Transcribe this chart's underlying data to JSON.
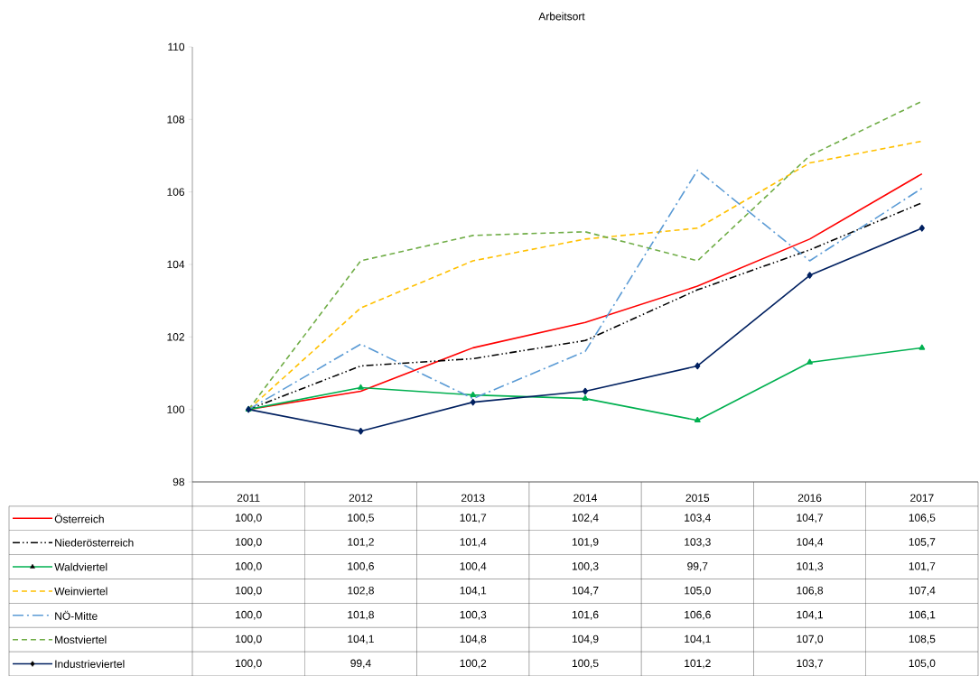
{
  "chart_data": {
    "type": "line",
    "title": "Arbeitsort",
    "categories": [
      "2011",
      "2012",
      "2013",
      "2014",
      "2015",
      "2016",
      "2017"
    ],
    "ylim": [
      98,
      110
    ],
    "yticks": [
      98,
      100,
      102,
      104,
      106,
      108,
      110
    ],
    "legend": "bottom",
    "series": [
      {
        "name": "Österreich",
        "color": "#ff0000",
        "line_style": "solid",
        "marker": "none",
        "values": [
          100.0,
          100.5,
          101.7,
          102.4,
          103.4,
          104.7,
          106.5
        ],
        "value_labels": [
          "100,0",
          "100,5",
          "101,7",
          "102,4",
          "103,4",
          "104,7",
          "106,5"
        ]
      },
      {
        "name": "Niederösterreich",
        "color": "#000000",
        "line_style": "dashdot",
        "marker": "none",
        "values": [
          100.0,
          101.2,
          101.4,
          101.9,
          103.3,
          104.4,
          105.7
        ],
        "value_labels": [
          "100,0",
          "101,2",
          "101,4",
          "101,9",
          "103,3",
          "104,4",
          "105,7"
        ]
      },
      {
        "name": "Waldviertel",
        "color": "#00b050",
        "line_style": "solid",
        "marker": "triangle",
        "values": [
          100.0,
          100.6,
          100.4,
          100.3,
          99.7,
          101.3,
          101.7
        ],
        "value_labels": [
          "100,0",
          "100,6",
          "100,4",
          "100,3",
          "99,7",
          "101,3",
          "101,7"
        ]
      },
      {
        "name": "Weinviertel",
        "color": "#ffc000",
        "line_style": "dashed",
        "marker": "none",
        "values": [
          100.0,
          102.8,
          104.1,
          104.7,
          105.0,
          106.8,
          107.4
        ],
        "value_labels": [
          "100,0",
          "102,8",
          "104,1",
          "104,7",
          "105,0",
          "106,8",
          "107,4"
        ]
      },
      {
        "name": "NÖ-Mitte",
        "color": "#5b9bd5",
        "line_style": "longdashdot",
        "marker": "none",
        "values": [
          100.0,
          101.8,
          100.3,
          101.6,
          106.6,
          104.1,
          106.1
        ],
        "value_labels": [
          "100,0",
          "101,8",
          "100,3",
          "101,6",
          "106,6",
          "104,1",
          "106,1"
        ]
      },
      {
        "name": "Mostviertel",
        "color": "#70ad47",
        "line_style": "dashed",
        "marker": "none",
        "values": [
          100.0,
          104.1,
          104.8,
          104.9,
          104.1,
          107.0,
          108.5
        ],
        "value_labels": [
          "100,0",
          "104,1",
          "104,8",
          "104,9",
          "104,1",
          "107,0",
          "108,5"
        ]
      },
      {
        "name": "Industrieviertel",
        "color": "#002060",
        "line_style": "solid",
        "marker": "diamond",
        "values": [
          100.0,
          99.4,
          100.2,
          100.5,
          101.2,
          103.7,
          105.0
        ],
        "value_labels": [
          "100,0",
          "99,4",
          "100,2",
          "100,5",
          "101,2",
          "103,7",
          "105,0"
        ]
      }
    ]
  }
}
